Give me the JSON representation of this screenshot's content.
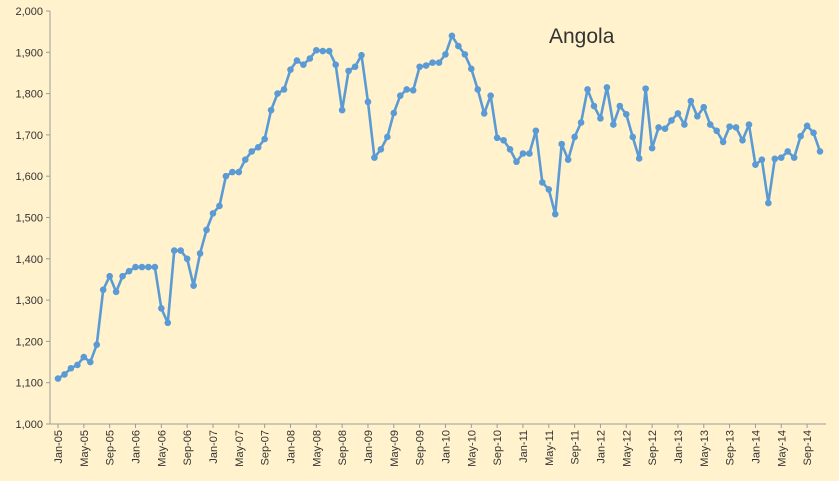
{
  "chart_data": {
    "type": "line",
    "title": "Angola",
    "xlabel": "",
    "ylabel": "",
    "ylim": [
      1000,
      2000
    ],
    "ytick_step": 100,
    "grid": false,
    "legend": "none",
    "line_color": "#5B9BD5",
    "x_tick_labels": [
      "Jan-05",
      "May-05",
      "Sep-05",
      "Jan-06",
      "May-06",
      "Sep-06",
      "Jan-07",
      "May-07",
      "Sep-07",
      "Jan-08",
      "May-08",
      "Sep-08",
      "Jan-09",
      "May-09",
      "Sep-09",
      "Jan-10",
      "May-10",
      "Sep-10",
      "Jan-11",
      "May-11",
      "Sep-11",
      "Jan-12",
      "May-12",
      "Sep-12",
      "Jan-13",
      "May-13",
      "Sep-13",
      "Jan-14",
      "May-14",
      "Sep-14"
    ],
    "x_first": "Jan-05",
    "x_last": "Dec-14",
    "series": [
      {
        "values": [
          1110,
          1120,
          1135,
          1143,
          1162,
          1150,
          1192,
          1325,
          1358,
          1320,
          1358,
          1370,
          1380,
          1380,
          1380,
          1380,
          1280,
          1245,
          1420,
          1420,
          1400,
          1335,
          1413,
          1470,
          1510,
          1528,
          1600,
          1610,
          1610,
          1640,
          1660,
          1670,
          1690,
          1760,
          1800,
          1810,
          1858,
          1880,
          1870,
          1885,
          1905,
          1903,
          1903,
          1870,
          1760,
          1855,
          1865,
          1893,
          1780,
          1645,
          1665,
          1695,
          1753,
          1795,
          1810,
          1808,
          1865,
          1868,
          1875,
          1875,
          1895,
          1940,
          1915,
          1895,
          1860,
          1810,
          1752,
          1795,
          1693,
          1687,
          1665,
          1635,
          1655,
          1655,
          1710,
          1585,
          1568,
          1508,
          1678,
          1640,
          1695,
          1730,
          1810,
          1770,
          1740,
          1815,
          1725,
          1770,
          1750,
          1695,
          1643,
          1812,
          1668,
          1718,
          1715,
          1735,
          1752,
          1725,
          1782,
          1745,
          1767,
          1725,
          1710,
          1683,
          1720,
          1718,
          1687,
          1725,
          1628,
          1640,
          1535,
          1642,
          1645,
          1660,
          1645,
          1697,
          1722,
          1705,
          1660
        ]
      }
    ]
  }
}
